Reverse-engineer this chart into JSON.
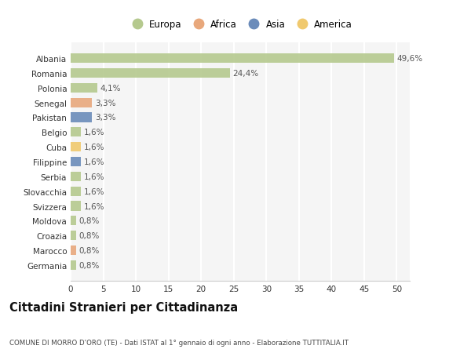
{
  "categories": [
    "Albania",
    "Romania",
    "Polonia",
    "Senegal",
    "Pakistan",
    "Belgio",
    "Cuba",
    "Filippine",
    "Serbia",
    "Slovacchia",
    "Svizzera",
    "Moldova",
    "Croazia",
    "Marocco",
    "Germania"
  ],
  "values": [
    49.6,
    24.4,
    4.1,
    3.3,
    3.3,
    1.6,
    1.6,
    1.6,
    1.6,
    1.6,
    1.6,
    0.8,
    0.8,
    0.8,
    0.8
  ],
  "labels": [
    "49,6%",
    "24,4%",
    "4,1%",
    "3,3%",
    "3,3%",
    "1,6%",
    "1,6%",
    "1,6%",
    "1,6%",
    "1,6%",
    "1,6%",
    "0,8%",
    "0,8%",
    "0,8%",
    "0,8%"
  ],
  "continent": [
    "Europa",
    "Europa",
    "Europa",
    "Africa",
    "Asia",
    "Europa",
    "America",
    "Asia",
    "Europa",
    "Europa",
    "Europa",
    "Europa",
    "Europa",
    "Africa",
    "Europa"
  ],
  "continent_colors": {
    "Europa": "#b5c98e",
    "Africa": "#e8a87c",
    "Asia": "#6b8cba",
    "America": "#f0c96e"
  },
  "legend_items": [
    "Europa",
    "Africa",
    "Asia",
    "America"
  ],
  "legend_colors": [
    "#b5c98e",
    "#e8a87c",
    "#6b8cba",
    "#f0c96e"
  ],
  "xlim": [
    0,
    52
  ],
  "xticks": [
    0,
    5,
    10,
    15,
    20,
    25,
    30,
    35,
    40,
    45,
    50
  ],
  "background_color": "#ffffff",
  "plot_bg_color": "#f5f5f5",
  "grid_color": "#ffffff",
  "bar_height": 0.65,
  "title": "Cittadini Stranieri per Cittadinanza",
  "subtitle": "COMUNE DI MORRO D'ORO (TE) - Dati ISTAT al 1° gennaio di ogni anno - Elaborazione TUTTITALIA.IT",
  "label_fontsize": 7.5,
  "tick_fontsize": 7.5,
  "title_fontsize": 10.5
}
